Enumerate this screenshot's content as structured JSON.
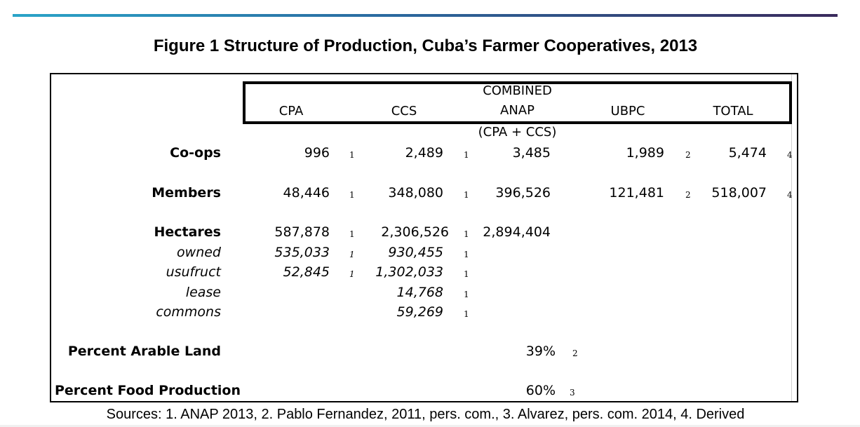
{
  "title": "Figure 1 Structure of Production, Cuba’s Farmer Cooperatives, 2013",
  "headers": {
    "cpa": "CPA",
    "ccs": "CCS",
    "combined_line1": "COMBINED",
    "combined_line2": "ANAP",
    "combined_sub": "(CPA + CCS)",
    "ubpc": "UBPC",
    "total": "TOTAL"
  },
  "rows": {
    "coops": {
      "label": "Co-ops",
      "cpa": "996",
      "cpa_src": "1",
      "ccs": "2,489",
      "ccs_src": "1",
      "anap": "3,485",
      "ubpc": "1,989",
      "ubpc_src": "2",
      "total": "5,474",
      "total_src": "4"
    },
    "members": {
      "label": "Members",
      "cpa": "48,446",
      "cpa_src": "1",
      "ccs": "348,080",
      "ccs_src": "1",
      "anap": "396,526",
      "ubpc": "121,481",
      "ubpc_src": "2",
      "total": "518,007",
      "total_src": "4"
    },
    "hectares": {
      "label": "Hectares",
      "cpa": "587,878",
      "cpa_src": "1",
      "ccs": "2,306,526",
      "ccs_src": "1",
      "anap": "2,894,404"
    },
    "owned": {
      "label": "owned",
      "cpa": "535,033",
      "cpa_src": "1",
      "ccs": "930,455",
      "ccs_src": "1"
    },
    "usufruct": {
      "label": "usufruct",
      "cpa": "52,845",
      "cpa_src": "1",
      "ccs": "1,302,033",
      "ccs_src": "1"
    },
    "lease": {
      "label": "lease",
      "ccs": "14,768",
      "ccs_src": "1"
    },
    "commons": {
      "label": "commons",
      "ccs": "59,269",
      "ccs_src": "1"
    },
    "arable": {
      "label": "Percent Arable Land",
      "value": "39%",
      "src": "2"
    },
    "food": {
      "label": "Percent Food Production",
      "value": "60%",
      "src": "3"
    }
  },
  "sources": "Sources: 1. ANAP 2013, 2. Pablo Fernandez, 2011, pers. com., 3. Alvarez, pers. com. 2014, 4. Derived"
}
